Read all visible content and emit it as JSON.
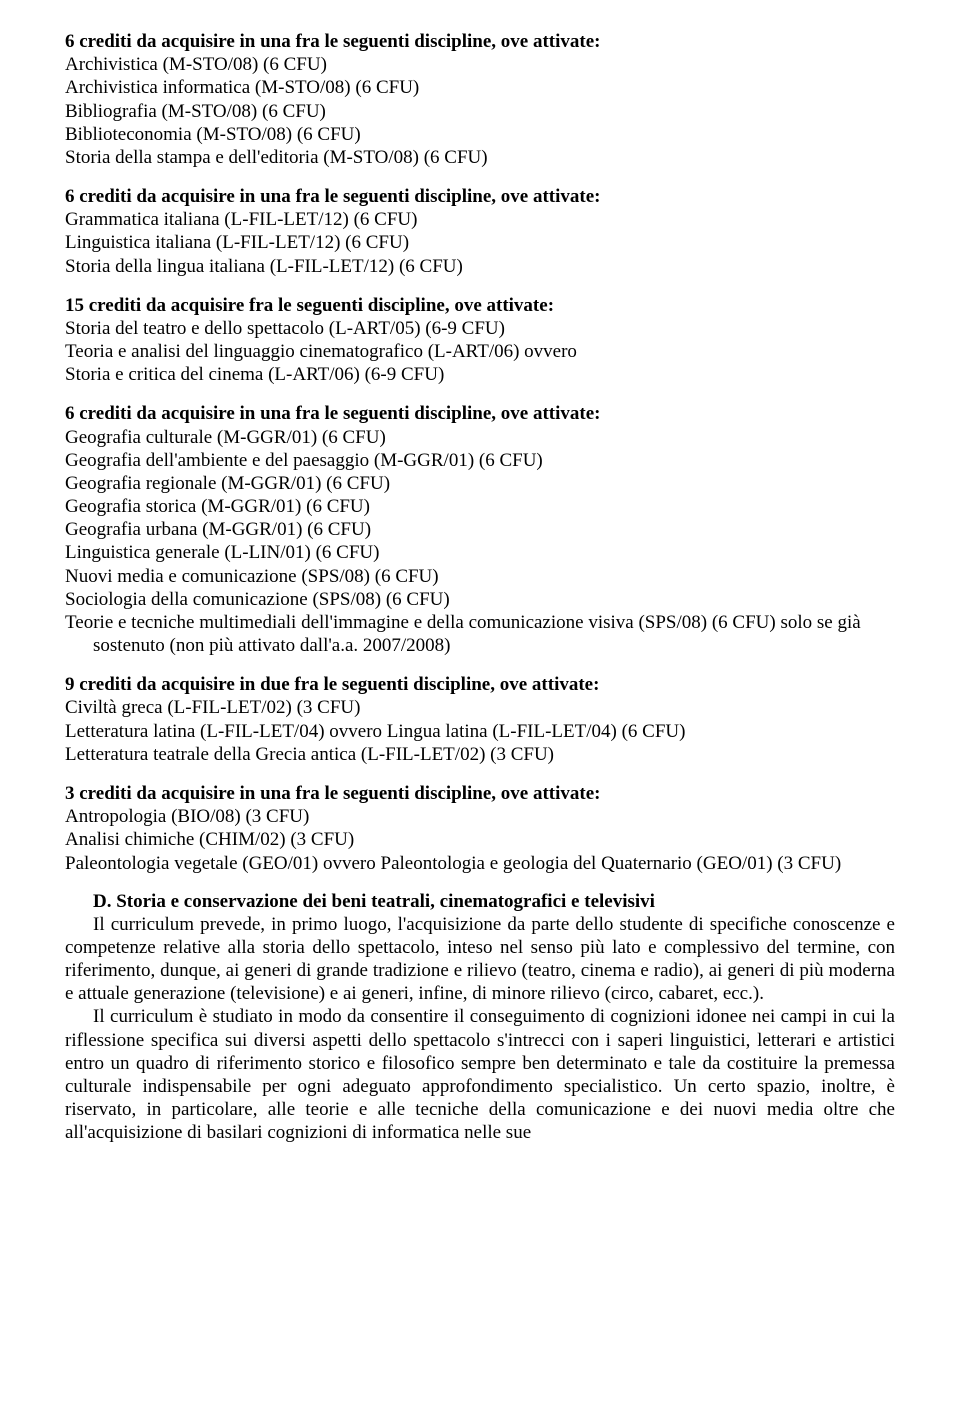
{
  "blocks": [
    {
      "heading": "6 crediti da acquisire in una fra le seguenti discipline, ove attivate:",
      "items": [
        "Archivistica (M-STO/08) (6 CFU)",
        "Archivistica informatica (M-STO/08) (6 CFU)",
        "Bibliografia (M-STO/08) (6 CFU)",
        "Biblioteconomia (M-STO/08) (6 CFU)",
        "Storia della stampa e dell'editoria (M-STO/08) (6 CFU)"
      ]
    },
    {
      "heading": "6 crediti da acquisire in una fra le seguenti discipline, ove attivate:",
      "items": [
        "Grammatica italiana (L-FIL-LET/12) (6 CFU)",
        "Linguistica italiana (L-FIL-LET/12) (6 CFU)",
        "Storia della lingua italiana (L-FIL-LET/12) (6 CFU)"
      ]
    },
    {
      "heading": "15 crediti da acquisire fra le seguenti discipline, ove attivate:",
      "items": [
        "Storia del teatro e dello spettacolo (L-ART/05) (6-9 CFU)",
        "Teoria e analisi del linguaggio cinematografico (L-ART/06) ovvero",
        "Storia e critica del cinema (L-ART/06) (6-9 CFU)"
      ]
    },
    {
      "heading": "6 crediti da acquisire in una fra le seguenti discipline, ove attivate:",
      "items": [
        "Geografia culturale (M-GGR/01) (6 CFU)",
        "Geografia dell'ambiente e del paesaggio (M-GGR/01) (6 CFU)",
        "Geografia regionale (M-GGR/01) (6 CFU)",
        "Geografia storica (M-GGR/01) (6 CFU)",
        "Geografia urbana (M-GGR/01) (6 CFU)",
        "Linguistica generale (L-LIN/01) (6 CFU)",
        "Nuovi media e comunicazione (SPS/08) (6 CFU)",
        "Sociologia della comunicazione (SPS/08) (6 CFU)",
        "Teorie e tecniche multimediali dell'immagine e della comunicazione visiva (SPS/08) (6 CFU) solo se già sostenuto (non più attivato dall'a.a. 2007/2008)"
      ],
      "indentLast": true
    },
    {
      "heading": "9 crediti da acquisire in due fra le seguenti discipline, ove attivate:",
      "items": [
        "Civiltà greca (L-FIL-LET/02) (3 CFU)",
        "Letteratura latina (L-FIL-LET/04) ovvero Lingua latina (L-FIL-LET/04) (6 CFU)",
        "Letteratura teatrale della Grecia antica (L-FIL-LET/02) (3 CFU)"
      ]
    },
    {
      "heading": "3 crediti da acquisire in una fra le seguenti discipline, ove attivate:",
      "items": [
        "Antropologia (BIO/08) (3 CFU)",
        "Analisi chimiche (CHIM/02) (3 CFU)",
        "Paleontologia vegetale (GEO/01) ovvero Paleontologia e geologia del Quaternario (GEO/01) (3 CFU)"
      ],
      "indentLast": true
    }
  ],
  "sectionD": {
    "lead": "D. Storia e conservazione dei beni teatrali, cinematografici e televisivi",
    "paragraphs": [
      "Il curriculum prevede, in primo luogo, l'acquisizione da parte dello studente di specifiche conoscenze e competenze relative alla storia dello spettacolo, inteso nel senso più lato e complessivo del termine, con riferimento, dunque, ai generi di grande tradizione e rilievo (teatro, cinema e radio), ai generi di più moderna e attuale generazione (televisione) e ai generi, infine, di minore rilievo (circo, cabaret, ecc.).",
      "Il curriculum è studiato in modo da consentire il conseguimento di cognizioni idonee nei campi in cui la riflessione specifica sui diversi aspetti dello spettacolo s'intrecci con i saperi linguistici, letterari e artistici entro un quadro di riferimento storico e filosofico sempre ben determinato e tale da costituire la premessa culturale indispensabile per ogni adeguato approfondimento specialistico. Un certo spazio, inoltre, è riservato, in particolare, alle teorie e alle tecniche della comunicazione e dei nuovi media oltre che all'acquisizione di basilari cognizioni di informatica nelle sue"
    ]
  }
}
